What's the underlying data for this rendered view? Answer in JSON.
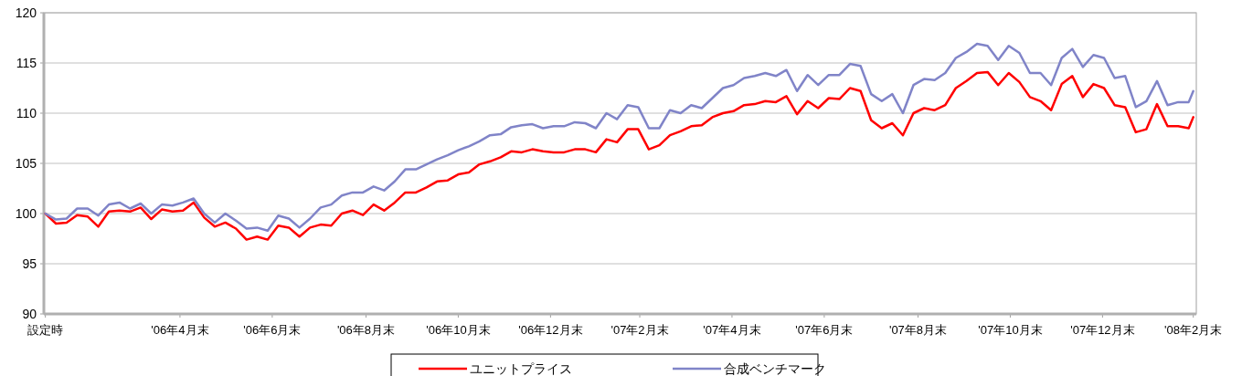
{
  "chart_data": {
    "type": "line",
    "x": [
      "2006-01-31",
      "2006-02-07",
      "2006-02-14",
      "2006-02-21",
      "2006-02-28",
      "2006-03-07",
      "2006-03-14",
      "2006-03-21",
      "2006-03-28",
      "2006-04-04",
      "2006-04-11",
      "2006-04-18",
      "2006-04-25",
      "2006-05-02",
      "2006-05-09",
      "2006-05-16",
      "2006-05-23",
      "2006-05-30",
      "2006-06-06",
      "2006-06-13",
      "2006-06-20",
      "2006-06-27",
      "2006-07-04",
      "2006-07-11",
      "2006-07-18",
      "2006-07-25",
      "2006-08-01",
      "2006-08-08",
      "2006-08-15",
      "2006-08-22",
      "2006-08-29",
      "2006-09-05",
      "2006-09-12",
      "2006-09-19",
      "2006-09-26",
      "2006-10-03",
      "2006-10-10",
      "2006-10-17",
      "2006-10-24",
      "2006-10-31",
      "2006-11-07",
      "2006-11-14",
      "2006-11-21",
      "2006-11-28",
      "2006-12-05",
      "2006-12-12",
      "2006-12-19",
      "2006-12-26",
      "2007-01-02",
      "2007-01-09",
      "2007-01-16",
      "2007-01-23",
      "2007-01-30",
      "2007-02-06",
      "2007-02-13",
      "2007-02-20",
      "2007-02-27",
      "2007-03-06",
      "2007-03-13",
      "2007-03-20",
      "2007-03-27",
      "2007-04-03",
      "2007-04-10",
      "2007-04-17",
      "2007-04-24",
      "2007-05-01",
      "2007-05-08",
      "2007-05-15",
      "2007-05-22",
      "2007-05-29",
      "2007-06-05",
      "2007-06-12",
      "2007-06-19",
      "2007-06-26",
      "2007-07-03",
      "2007-07-10",
      "2007-07-17",
      "2007-07-24",
      "2007-07-31",
      "2007-08-07",
      "2007-08-14",
      "2007-08-21",
      "2007-08-28",
      "2007-09-04",
      "2007-09-11",
      "2007-09-18",
      "2007-09-25",
      "2007-10-02",
      "2007-10-09",
      "2007-10-16",
      "2007-10-23",
      "2007-10-30",
      "2007-11-06",
      "2007-11-13",
      "2007-11-20",
      "2007-11-27",
      "2007-12-04",
      "2007-12-11",
      "2007-12-18",
      "2007-12-25",
      "2008-01-01",
      "2008-01-08",
      "2008-01-15",
      "2008-01-22",
      "2008-01-29",
      "2008-02-05",
      "2008-02-12",
      "2008-02-19",
      "2008-02-26",
      "2008-02-29"
    ],
    "series": [
      {
        "name": "ユニットプライス",
        "color": "#ff0000",
        "values": [
          100,
          99.0,
          99.1,
          99.85,
          99.7,
          98.7,
          100.2,
          100.3,
          100.2,
          100.6,
          99.45,
          100.4,
          100.2,
          100.3,
          101.1,
          99.6,
          98.7,
          99.1,
          98.5,
          97.4,
          97.7,
          97.4,
          98.8,
          98.6,
          97.7,
          98.6,
          98.9,
          98.8,
          100,
          100.3,
          99.85,
          100.9,
          100.3,
          101.1,
          102.1,
          102.1,
          102.6,
          103.2,
          103.3,
          103.9,
          104.1,
          104.9,
          105.2,
          105.6,
          106.2,
          106.1,
          106.4,
          106.2,
          106.1,
          106.1,
          106.4,
          106.4,
          106.1,
          107.4,
          107.1,
          108.4,
          108.4,
          106.4,
          106.8,
          107.8,
          108.2,
          108.7,
          108.8,
          109.6,
          110,
          110.2,
          110.8,
          110.9,
          111.2,
          111.1,
          111.7,
          109.9,
          111.2,
          110.5,
          111.5,
          111.4,
          112.5,
          112.2,
          109.3,
          108.5,
          109,
          107.8,
          110,
          110.5,
          110.3,
          110.8,
          112.5,
          113.2,
          114,
          114.1,
          112.8,
          114,
          113.1,
          111.6,
          111.2,
          110.3,
          112.9,
          113.7,
          111.6,
          112.9,
          112.5,
          110.8,
          110.6,
          108.1,
          108.4,
          110.9,
          108.7,
          108.7,
          108.5,
          109.6
        ]
      },
      {
        "name": "合成ベンチマーク",
        "color": "#8084c8",
        "values": [
          100,
          99.4,
          99.5,
          100.5,
          100.5,
          99.8,
          100.9,
          101.1,
          100.5,
          101,
          100,
          100.9,
          100.8,
          101.1,
          101.5,
          100,
          99.1,
          100,
          99.3,
          98.5,
          98.6,
          98.3,
          99.8,
          99.5,
          98.6,
          99.5,
          100.6,
          100.9,
          101.8,
          102.1,
          102.1,
          102.7,
          102.3,
          103.2,
          104.4,
          104.4,
          104.9,
          105.4,
          105.8,
          106.3,
          106.7,
          107.2,
          107.8,
          107.9,
          108.6,
          108.8,
          108.9,
          108.5,
          108.7,
          108.7,
          109.1,
          109,
          108.5,
          110,
          109.4,
          110.8,
          110.6,
          108.5,
          108.5,
          110.3,
          110,
          110.8,
          110.5,
          111.5,
          112.5,
          112.8,
          113.5,
          113.7,
          114,
          113.7,
          114.3,
          112.2,
          113.8,
          112.8,
          113.8,
          113.8,
          114.9,
          114.7,
          111.9,
          111.2,
          111.9,
          110,
          112.8,
          113.4,
          113.3,
          114,
          115.5,
          116.1,
          116.9,
          116.7,
          115.3,
          116.7,
          116,
          114,
          114,
          112.8,
          115.5,
          116.4,
          114.6,
          115.8,
          115.5,
          113.5,
          113.7,
          110.6,
          111.2,
          113.2,
          110.8,
          111.1,
          111.1,
          112.2
        ]
      }
    ],
    "xlim": [
      "2006-01-30",
      "2008-03-02"
    ],
    "xticks": [
      {
        "value": "2006-01-31",
        "label": "設定時"
      },
      {
        "value": "2006-04-30",
        "label": "'06年4月末"
      },
      {
        "value": "2006-06-30",
        "label": "'06年6月末"
      },
      {
        "value": "2006-08-31",
        "label": "'06年8月末"
      },
      {
        "value": "2006-10-31",
        "label": "'06年10月末"
      },
      {
        "value": "2006-12-31",
        "label": "'06年12月末"
      },
      {
        "value": "2007-02-28",
        "label": "'07年2月末"
      },
      {
        "value": "2007-04-30",
        "label": "'07年4月末"
      },
      {
        "value": "2007-06-30",
        "label": "'07年6月末"
      },
      {
        "value": "2007-08-31",
        "label": "'07年8月末"
      },
      {
        "value": "2007-10-31",
        "label": "'07年10月末"
      },
      {
        "value": "2007-12-31",
        "label": "'07年12月末"
      },
      {
        "value": "2008-02-29",
        "label": "'08年2月末"
      }
    ],
    "ylim": [
      90,
      120
    ],
    "yticks": [
      90,
      95,
      100,
      105,
      110,
      115,
      120
    ],
    "grid": "y",
    "legend": "bottom",
    "line_style": "solid"
  }
}
